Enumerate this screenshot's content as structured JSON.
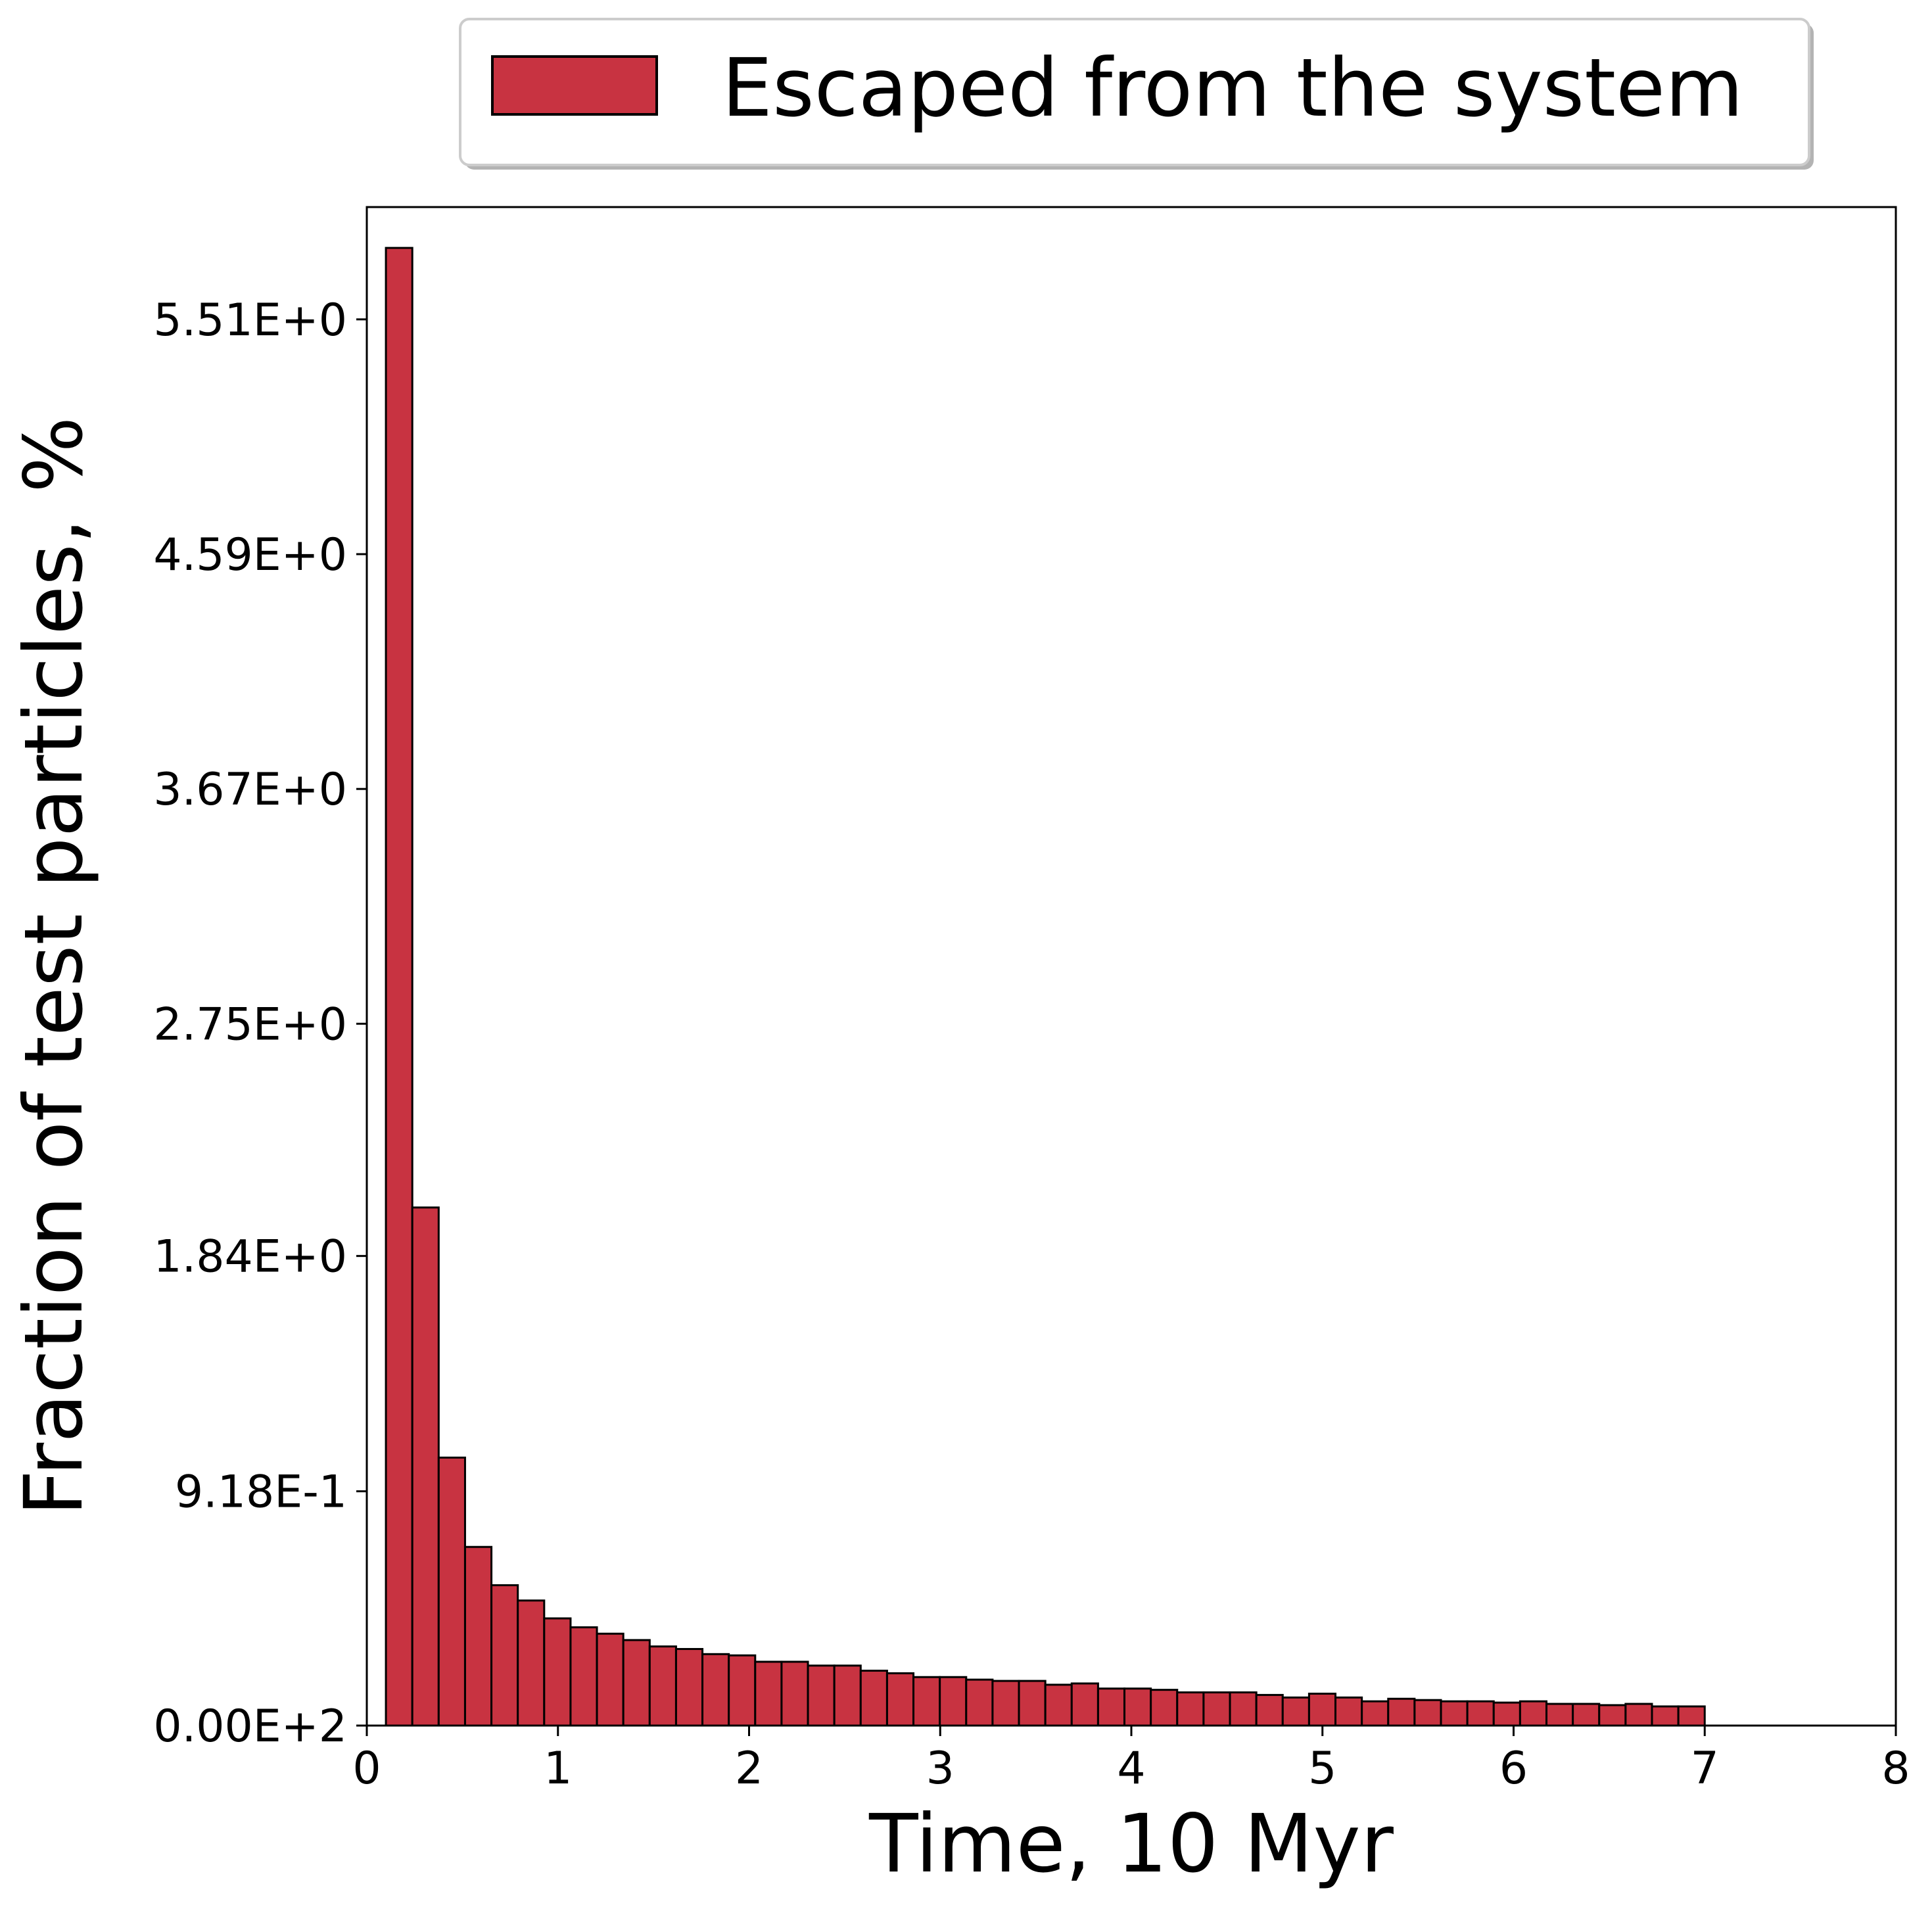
{
  "chart_data": {
    "type": "bar",
    "xlabel": "Time, 10 Myr",
    "ylabel": "Fraction of test particles, %",
    "xlim": [
      0,
      8
    ],
    "ylim": [
      0,
      5.95
    ],
    "x_ticks": [
      {
        "value": 0,
        "label": "0"
      },
      {
        "value": 1,
        "label": "1"
      },
      {
        "value": 2,
        "label": "2"
      },
      {
        "value": 3,
        "label": "3"
      },
      {
        "value": 4,
        "label": "4"
      },
      {
        "value": 5,
        "label": "5"
      },
      {
        "value": 6,
        "label": "6"
      },
      {
        "value": 7,
        "label": "7"
      },
      {
        "value": 8,
        "label": "8"
      }
    ],
    "y_ticks": [
      {
        "value": 0,
        "label": "0.00E+2"
      },
      {
        "value": 0.918,
        "label": "9.18E-1"
      },
      {
        "value": 1.84,
        "label": "1.84E+0"
      },
      {
        "value": 2.75,
        "label": "2.75E+0"
      },
      {
        "value": 3.67,
        "label": "3.67E+0"
      },
      {
        "value": 4.59,
        "label": "4.59E+0"
      },
      {
        "value": 5.51,
        "label": "5.51E+0"
      }
    ],
    "grid": false,
    "legend_position": "top-center, outside plot",
    "series": [
      {
        "name": "Escaped from the system",
        "color": "#c83341",
        "edge_color": "#000000",
        "bin_start": 0.1,
        "bin_width": 0.138,
        "values": [
          5.79,
          2.03,
          1.05,
          0.7,
          0.55,
          0.49,
          0.42,
          0.385,
          0.36,
          0.335,
          0.31,
          0.3,
          0.28,
          0.275,
          0.25,
          0.25,
          0.235,
          0.235,
          0.215,
          0.205,
          0.19,
          0.19,
          0.18,
          0.175,
          0.175,
          0.16,
          0.165,
          0.145,
          0.145,
          0.14,
          0.13,
          0.13,
          0.13,
          0.12,
          0.11,
          0.125,
          0.11,
          0.095,
          0.105,
          0.1,
          0.095,
          0.095,
          0.09,
          0.095,
          0.085,
          0.085,
          0.08,
          0.085,
          0.075,
          0.075
        ]
      }
    ]
  }
}
